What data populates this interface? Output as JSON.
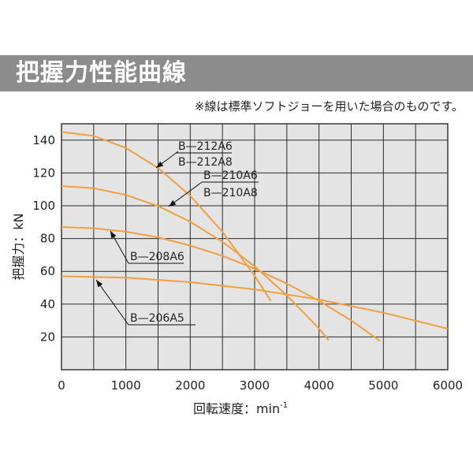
{
  "header": {
    "title": "把握力性能曲線",
    "note": "※線は標準ソフトジョーを用いた場合のものです。"
  },
  "chart_data": {
    "type": "line",
    "title": "把握力性能曲線",
    "xlabel": "回転速度：min",
    "xlabel_sup": "-1",
    "ylabel": "把握力：kN",
    "xlim": [
      0,
      6000
    ],
    "ylim": [
      0,
      150
    ],
    "xticks": [
      "0",
      "1000",
      "2000",
      "3000",
      "4000",
      "5000",
      "6000"
    ],
    "yticks": [
      "20",
      "40",
      "60",
      "80",
      "100",
      "120",
      "140"
    ],
    "grid": true,
    "colors": {
      "line": "#f0a040",
      "plot_bg": "#e4e4e4",
      "grid": "#2a2a2a",
      "axis_text": "#222222"
    },
    "series": [
      {
        "name": "B—212A6",
        "x": [
          0,
          500,
          1000,
          1500,
          2000,
          2500,
          3000,
          3250
        ],
        "values": [
          145,
          142.6,
          135.3,
          123.1,
          106.1,
          84.1,
          57.3,
          42
        ]
      },
      {
        "name": "B—212A8",
        "x": [
          0,
          500,
          1000,
          1500,
          2000,
          2500,
          3000,
          3250
        ],
        "values": [
          145,
          142.6,
          135.3,
          123.1,
          106.1,
          84.1,
          57.3,
          42
        ]
      },
      {
        "name": "B—210A6",
        "x": [
          0,
          500,
          1000,
          1500,
          2000,
          2500,
          3000,
          3500,
          4000,
          4150
        ],
        "values": [
          112,
          110.7,
          106.6,
          99.8,
          90.3,
          78,
          63.1,
          45.4,
          25.1,
          18
        ]
      },
      {
        "name": "B—210A8",
        "x": [
          0,
          500,
          1000,
          1500,
          2000,
          2500,
          3000,
          3500,
          4000,
          4150
        ],
        "values": [
          112,
          110.7,
          106.6,
          99.8,
          90.3,
          78,
          63.1,
          45.4,
          25.1,
          18
        ]
      },
      {
        "name": "B—208A6",
        "x": [
          0,
          500,
          1000,
          1500,
          2000,
          2500,
          3000,
          3500,
          4000,
          4500,
          4950
        ],
        "values": [
          87,
          86.3,
          84.2,
          80.7,
          75.7,
          69.4,
          61.7,
          52.5,
          42,
          30,
          17.5
        ]
      },
      {
        "name": "B—206A5",
        "x": [
          0,
          1000,
          2000,
          3000,
          4000,
          5000,
          6000
        ],
        "values": [
          57,
          56.1,
          53.4,
          49,
          42.8,
          34.8,
          25
        ]
      }
    ],
    "annotations": [
      {
        "text": "B—212A6",
        "ref": "B—212A6"
      },
      {
        "text": "B—212A8",
        "ref": "B—212A8"
      },
      {
        "text": "B—210A6",
        "ref": "B—210A6"
      },
      {
        "text": "B—210A8",
        "ref": "B—210A8"
      },
      {
        "text": "B—208A6",
        "ref": "B—208A6"
      },
      {
        "text": "B—206A5",
        "ref": "B—206A5"
      }
    ]
  }
}
